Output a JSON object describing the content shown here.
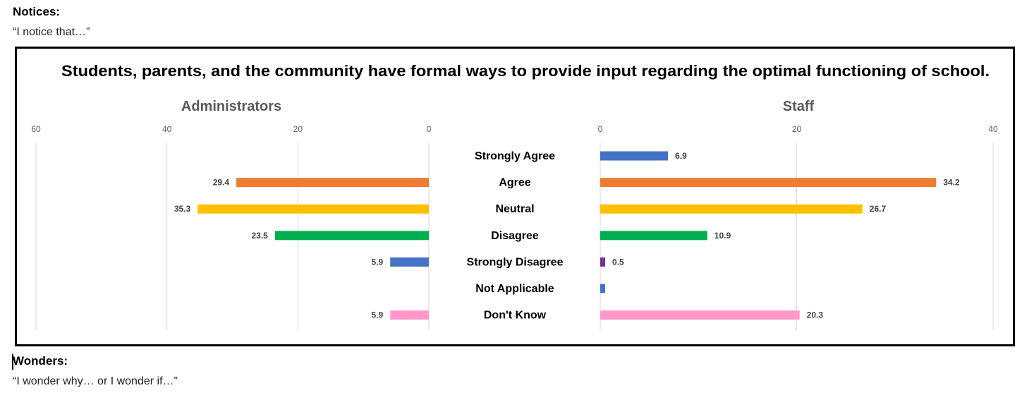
{
  "notices": {
    "heading": "Notices:",
    "prompt": "“I notice that…”"
  },
  "wonders": {
    "heading": "Wonders:",
    "prompt": "“I wonder why… or I wonder if…”"
  },
  "chart_data": {
    "type": "bar",
    "orientation": "horizontal",
    "layout": "back-to-back",
    "title": "Students, parents, and the community have formal ways to provide input regarding the optimal functioning of school.",
    "categories": [
      "Strongly Agree",
      "Agree",
      "Neutral",
      "Disagree",
      "Strongly Disagree",
      "Not Applicable",
      "Don't Know"
    ],
    "colors": [
      "#4472C4",
      "#ED7D31",
      "#FFC000",
      "#00B050",
      "#4472C4",
      "#4472C4",
      "#FF99CC"
    ],
    "panels": [
      {
        "title": "Administrators",
        "direction": "reversed",
        "xlim": [
          0,
          60
        ],
        "ticks": [
          60,
          40,
          20,
          0
        ],
        "values": [
          0,
          29.4,
          35.3,
          23.5,
          5.9,
          0,
          5.9
        ],
        "labels": [
          "",
          "29.4",
          "35.3",
          "23.5",
          "5.9",
          "",
          "5.9"
        ],
        "colors": [
          "#4472C4",
          "#ED7D31",
          "#FFC000",
          "#00B050",
          "#4472C4",
          "#4472C4",
          "#FF99CC"
        ]
      },
      {
        "title": "Staff",
        "direction": "normal",
        "xlim": [
          0,
          40
        ],
        "ticks": [
          0,
          20,
          40
        ],
        "values": [
          6.9,
          34.2,
          26.7,
          10.9,
          0.5,
          0.5,
          20.3
        ],
        "labels": [
          "6.9",
          "34.2",
          "26.7",
          "10.9",
          "0.5",
          "",
          "20.3"
        ],
        "colors": [
          "#4472C4",
          "#ED7D31",
          "#FFC000",
          "#00B050",
          "#7030A0",
          "#4472C4",
          "#FF99CC"
        ]
      }
    ],
    "grid": true,
    "legend": "none"
  }
}
